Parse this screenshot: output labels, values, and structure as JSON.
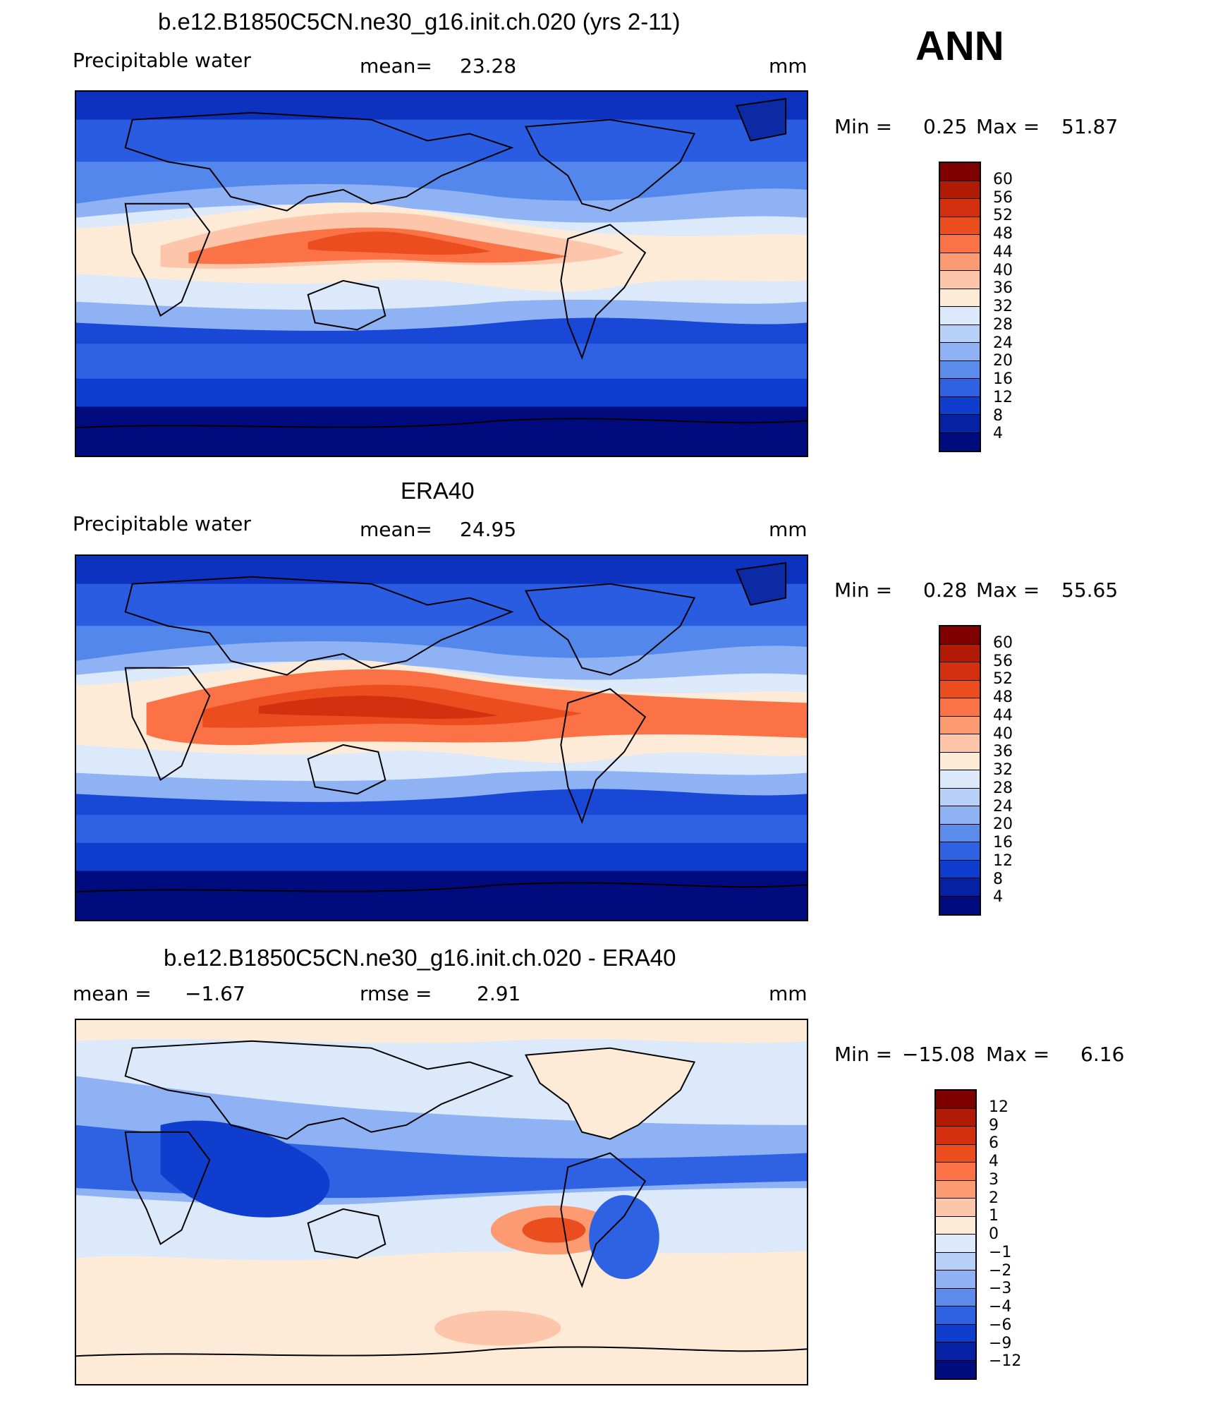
{
  "header": {
    "season": "ANN"
  },
  "units": "mm",
  "panels": [
    {
      "title": "b.e12.B1850C5CN.ne30_g16.init.ch.020 (yrs 2-11)",
      "variable": "Precipitable  water",
      "stat1_label": "mean=",
      "stat1_value": "23.28",
      "units": "mm",
      "minmax": {
        "min_label": "Min  =",
        "min": "0.25",
        "max_label": "Max  =",
        "max": "51.87"
      },
      "style": "model"
    },
    {
      "title": "ERA40",
      "variable": "Precipitable  water",
      "stat1_label": "mean=",
      "stat1_value": "24.95",
      "units": "mm",
      "minmax": {
        "min_label": "Min  =",
        "min": "0.28",
        "max_label": "Max  =",
        "max": "55.65"
      },
      "style": "obs"
    },
    {
      "title": "b.e12.B1850C5CN.ne30_g16.init.ch.020 - ERA40",
      "stat1_label": "mean  =",
      "stat1_value": "−1.67",
      "stat2_label": "rmse  =",
      "stat2_value": "2.91",
      "units": "mm",
      "minmax": {
        "min_label": "Min  =",
        "min": "−15.08",
        "max_label": "Max  =",
        "max": "6.16"
      },
      "style": "diff"
    }
  ],
  "colorbars": {
    "abs": {
      "ticks": [
        "60",
        "56",
        "52",
        "48",
        "44",
        "40",
        "36",
        "32",
        "28",
        "24",
        "20",
        "16",
        "12",
        "8",
        "4"
      ],
      "colors": [
        "#7f0000",
        "#b11a05",
        "#d4300f",
        "#ec4d1f",
        "#fa7245",
        "#fc9a72",
        "#fdc6aa",
        "#feebd7",
        "#dbe9fb",
        "#b6d0f8",
        "#8eb2f3",
        "#5b8cec",
        "#2f62e3",
        "#0f3ecf",
        "#0522a5",
        "#000b7e"
      ]
    },
    "diff": {
      "ticks": [
        "12",
        "9",
        "6",
        "4",
        "3",
        "2",
        "1",
        "0",
        "−1",
        "−2",
        "−3",
        "−4",
        "−6",
        "−9",
        "−12"
      ],
      "colors": [
        "#7f0000",
        "#b11a05",
        "#d4300f",
        "#ec4d1f",
        "#fa7245",
        "#fc9a72",
        "#fdc6aa",
        "#feebd7",
        "#dbe9fb",
        "#b6d0f8",
        "#8eb2f3",
        "#5b8cec",
        "#2f62e3",
        "#0f3ecf",
        "#0522a5",
        "#000b7e"
      ]
    }
  }
}
